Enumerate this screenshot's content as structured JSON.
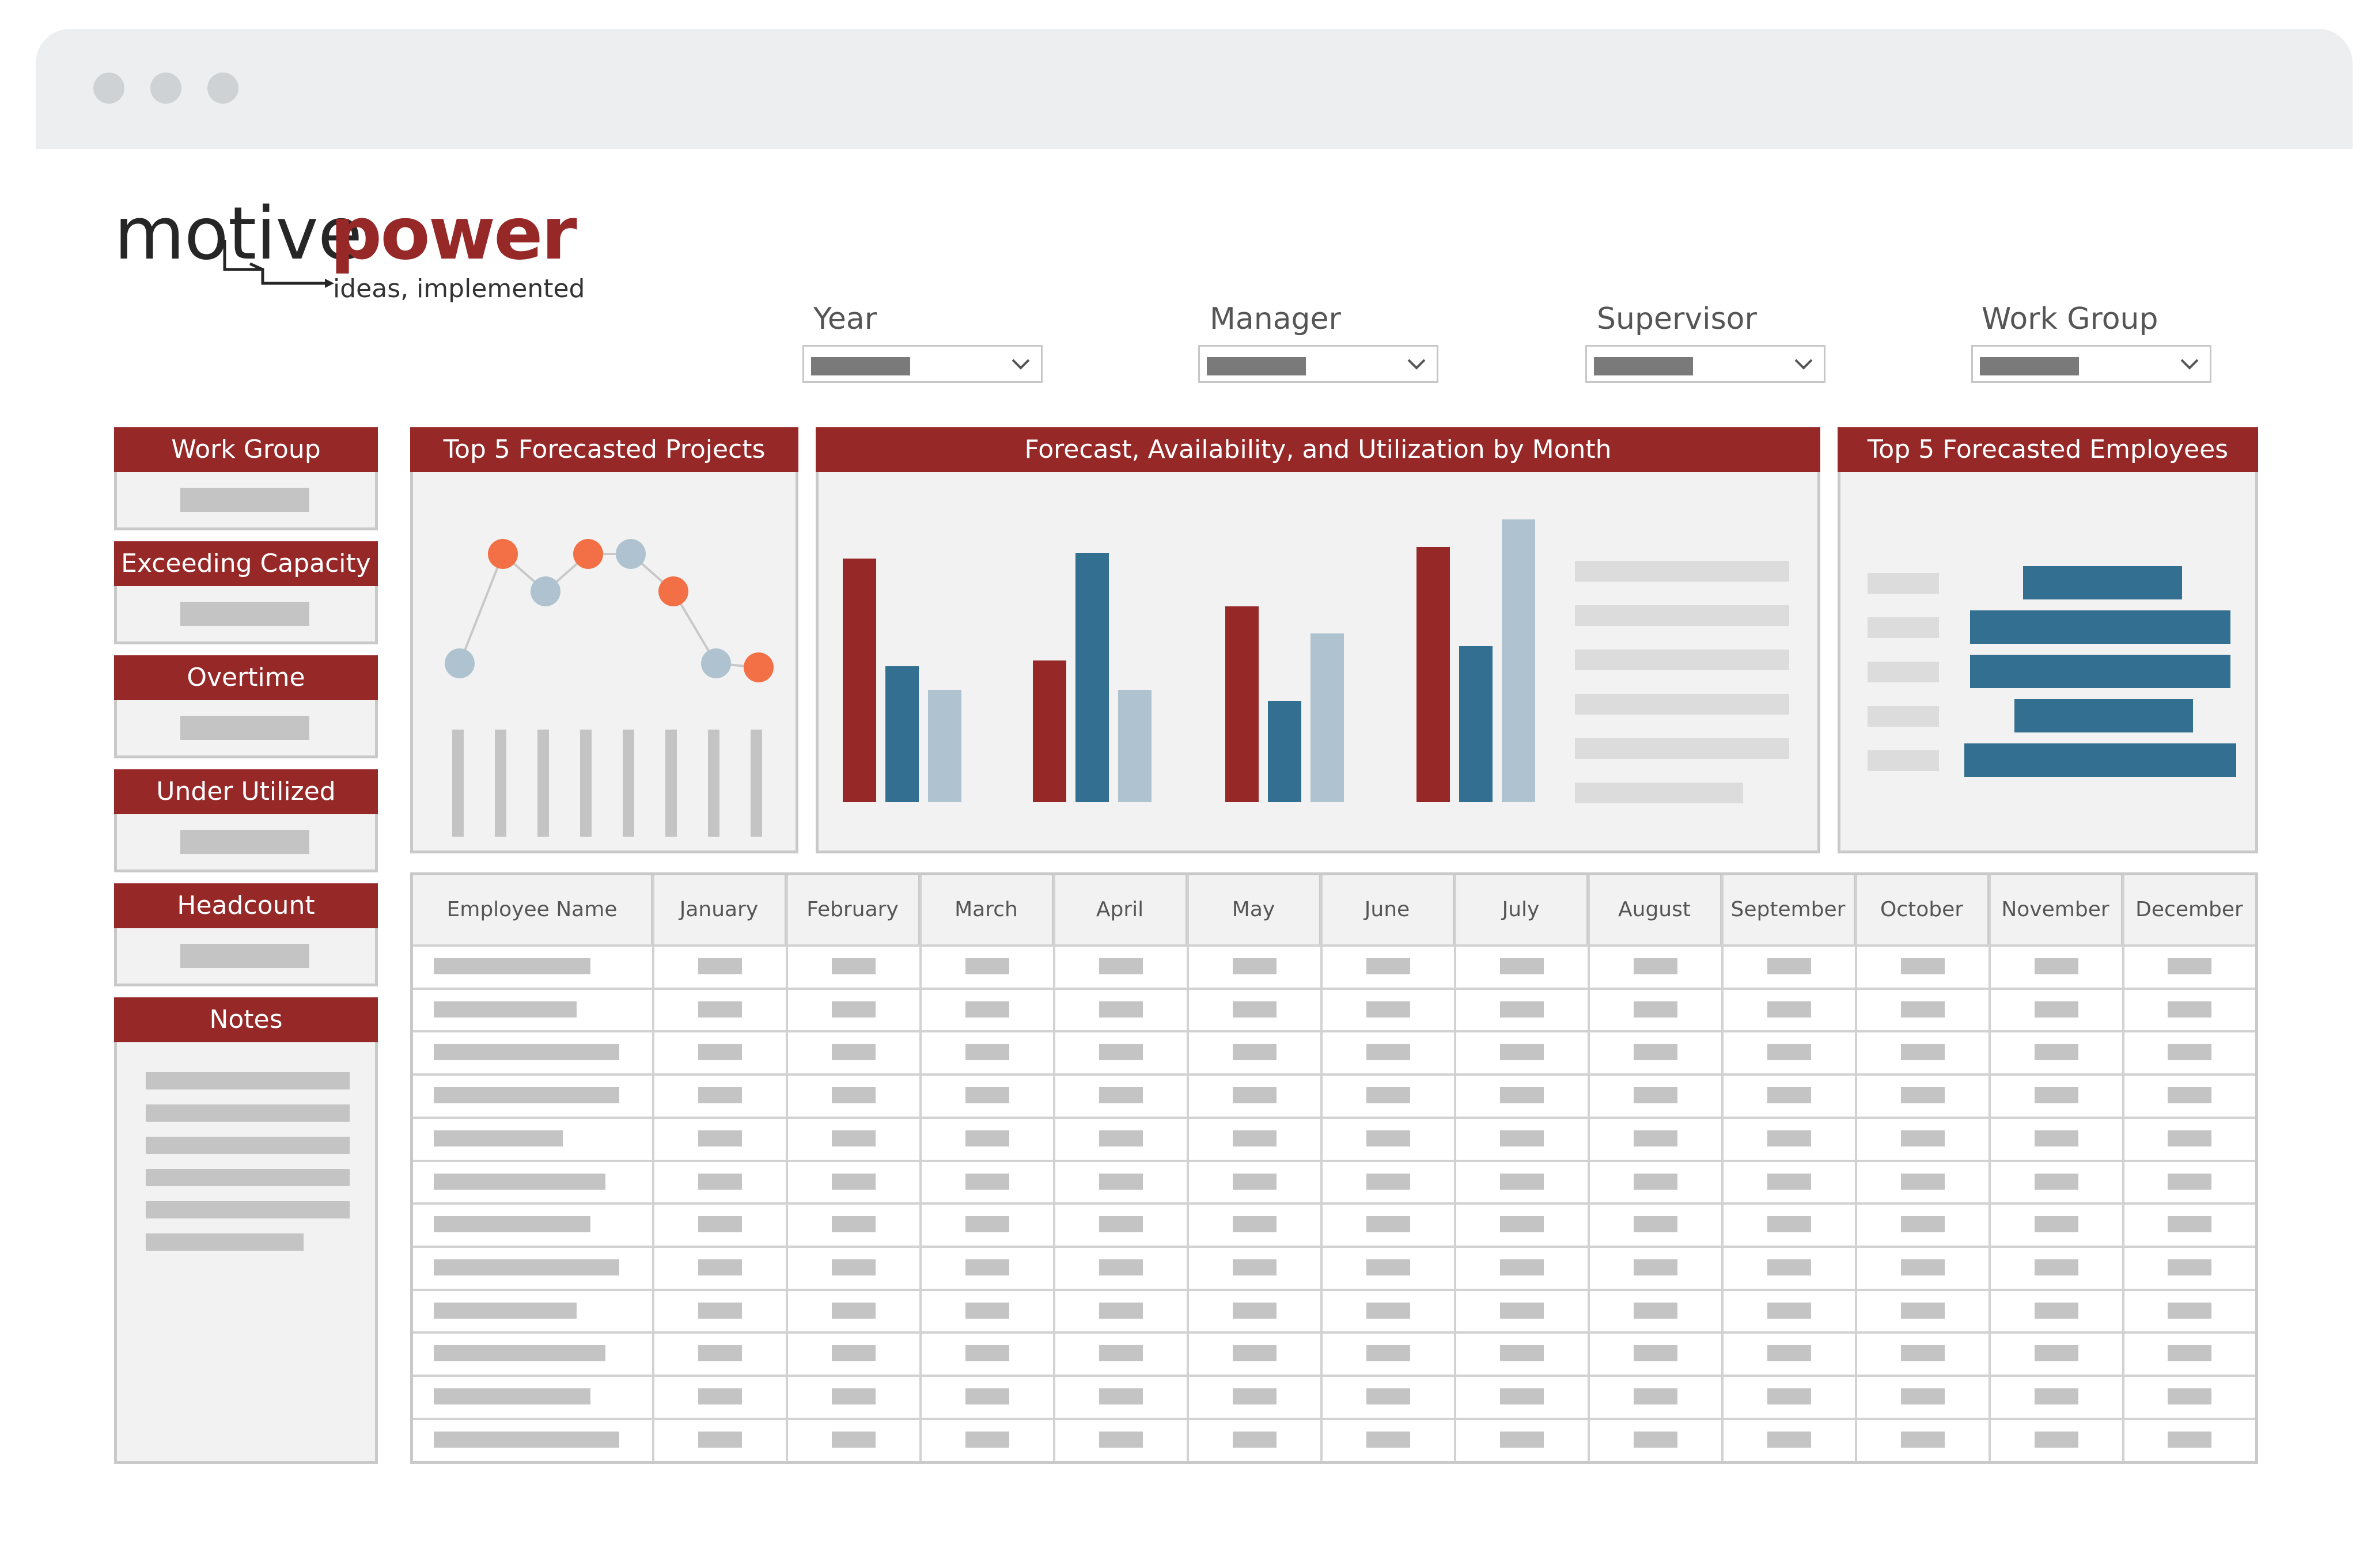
{
  "brand": {
    "name_part1": "motive",
    "name_part2": "power",
    "tagline": "ideas, implemented",
    "colors": {
      "primary": "#962828",
      "text": "#262626"
    }
  },
  "filters": [
    {
      "label": "Year"
    },
    {
      "label": "Manager"
    },
    {
      "label": "Supervisor"
    },
    {
      "label": "Work Group"
    }
  ],
  "sidebar": {
    "cards": [
      {
        "title": "Work Group"
      },
      {
        "title": "Exceeding Capacity"
      },
      {
        "title": "Overtime"
      },
      {
        "title": "Under Utilized"
      },
      {
        "title": "Headcount"
      }
    ],
    "notes_title": "Notes"
  },
  "charts": {
    "projects_title": "Top 5 Forecasted Projects",
    "monthly_title": "Forecast, Availability, and Utilization by Month",
    "employees_title": "Top 5 Forecasted Employees",
    "colors": {
      "forecast": "#962828",
      "availability": "#336f90",
      "utilization": "#aec3cf",
      "highlight": "#f36f45"
    }
  },
  "table": {
    "headers": [
      "Employee Name",
      "January",
      "February",
      "March",
      "April",
      "May",
      "June",
      "July",
      "August",
      "September",
      "October",
      "November",
      "December"
    ]
  },
  "icons": [
    "chevron-down-icon",
    "window-dot-icon",
    "logo-arrow-icon"
  ]
}
